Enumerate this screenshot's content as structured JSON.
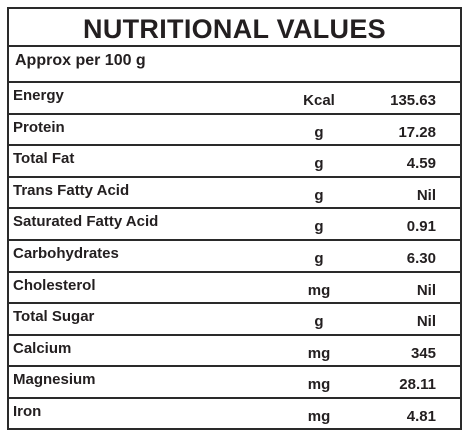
{
  "title": "NUTRITIONAL VALUES",
  "subtitle": "Approx per 100 g",
  "rows": [
    {
      "name": "Energy",
      "unit": "Kcal",
      "value": "135.63"
    },
    {
      "name": "Protein",
      "unit": "g",
      "value": "17.28"
    },
    {
      "name": "Total Fat",
      "unit": "g",
      "value": "4.59"
    },
    {
      "name": "Trans Fatty Acid",
      "unit": "g",
      "value": "Nil"
    },
    {
      "name": "Saturated Fatty Acid",
      "unit": "g",
      "value": "0.91"
    },
    {
      "name": "Carbohydrates",
      "unit": "g",
      "value": "6.30"
    },
    {
      "name": "Cholesterol",
      "unit": "mg",
      "value": "Nil"
    },
    {
      "name": "Total Sugar",
      "unit": "g",
      "value": "Nil"
    },
    {
      "name": "Calcium",
      "unit": "mg",
      "value": "345"
    },
    {
      "name": "Magnesium",
      "unit": "mg",
      "value": "28.11"
    },
    {
      "name": "Iron",
      "unit": "mg",
      "value": "4.81"
    }
  ]
}
